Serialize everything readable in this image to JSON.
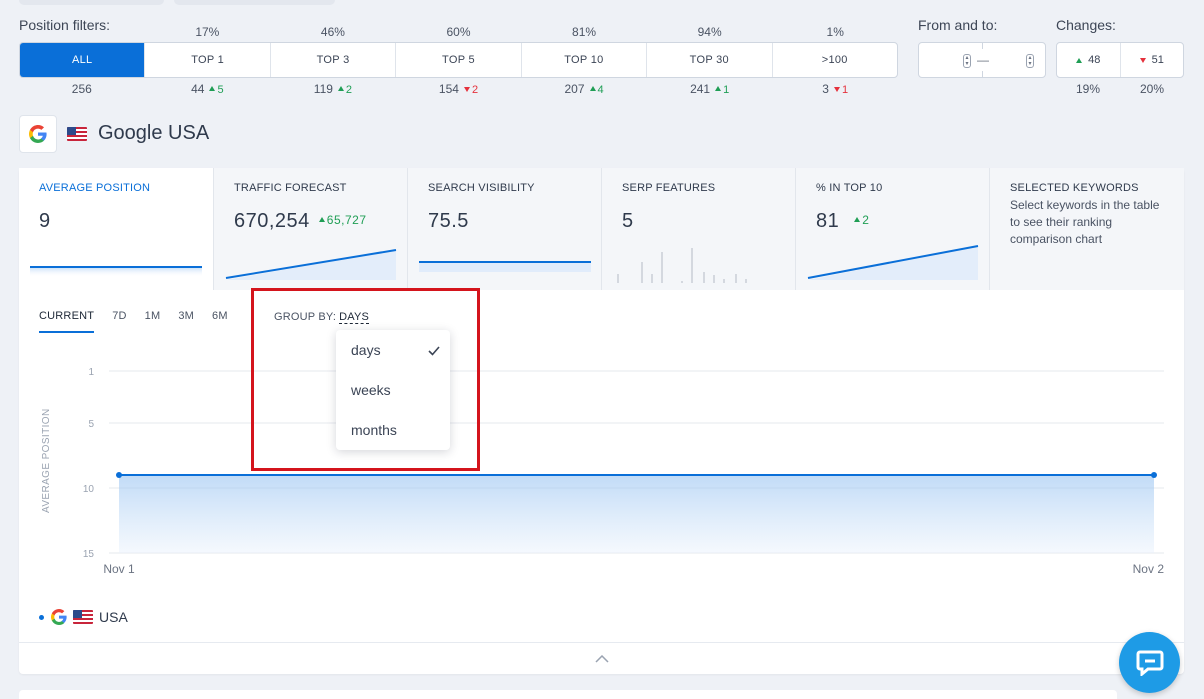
{
  "position_filters": {
    "label": "Position filters:",
    "buttons": [
      {
        "label": "ALL",
        "pct": "",
        "count": "256",
        "delta": "",
        "dir": ""
      },
      {
        "label": "TOP 1",
        "pct": "17%",
        "count": "44",
        "delta": "5",
        "dir": "up"
      },
      {
        "label": "TOP 3",
        "pct": "46%",
        "count": "119",
        "delta": "2",
        "dir": "up"
      },
      {
        "label": "TOP 5",
        "pct": "60%",
        "count": "154",
        "delta": "2",
        "dir": "down"
      },
      {
        "label": "TOP 10",
        "pct": "81%",
        "count": "207",
        "delta": "4",
        "dir": "up"
      },
      {
        "label": "TOP 30",
        "pct": "94%",
        "count": "241",
        "delta": "1",
        "dir": "up"
      },
      {
        "label": ">100",
        "pct": "1%",
        "count": "3",
        "delta": "1",
        "dir": "down"
      }
    ]
  },
  "from_to": {
    "label": "From and to:",
    "separator": "—"
  },
  "changes": {
    "label": "Changes:",
    "up": "48",
    "down": "51",
    "up_pct": "19%",
    "down_pct": "20%"
  },
  "engine": {
    "name": "Google USA",
    "icon": "google-g-icon",
    "flag": "us-flag-icon"
  },
  "metrics": [
    {
      "title": "AVERAGE POSITION",
      "value": "9",
      "delta": ""
    },
    {
      "title": "TRAFFIC FORECAST",
      "value": "670,254",
      "delta": "65,727"
    },
    {
      "title": "SEARCH VISIBILITY",
      "value": "75.5",
      "delta": ""
    },
    {
      "title": "SERP FEATURES",
      "value": "5",
      "delta": ""
    },
    {
      "title": "% IN TOP 10",
      "value": "81",
      "delta": "2"
    },
    {
      "title": "SELECTED KEYWORDS",
      "value": "",
      "delta": "",
      "desc": "Select keywords in the table to see their ranking comparison chart"
    }
  ],
  "period_tabs": [
    "CURRENT",
    "7D",
    "1M",
    "3M",
    "6M"
  ],
  "group_by": {
    "label": "GROUP BY:",
    "value": "DAYS",
    "options": [
      "days",
      "weeks",
      "months"
    ],
    "selected": "days"
  },
  "legend": {
    "label": "USA"
  },
  "colors": {
    "accent": "#0a6fd8",
    "up": "#1f9e55",
    "down": "#e5313c",
    "highlight": "#d4141c",
    "chat": "#1e9be6"
  },
  "chart_data": {
    "type": "area",
    "x": [
      "Nov 1",
      "Nov 2"
    ],
    "series": [
      {
        "values": [
          9,
          9
        ]
      }
    ],
    "y_ticks": [
      1,
      5,
      10,
      15
    ],
    "ylim": [
      1,
      15
    ],
    "y_reversed": true,
    "ylabel": "AVERAGE POSITION",
    "grid": true
  }
}
